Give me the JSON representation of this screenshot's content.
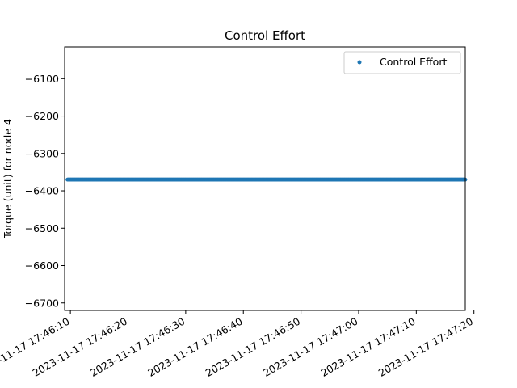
{
  "chart_data": {
    "type": "scatter",
    "title": "Control Effort",
    "xlabel": "",
    "ylabel": "Torque (unit) for node 4",
    "x_range": [
      "2023-11-17 17:46:09",
      "2023-11-17 17:47:18.5"
    ],
    "ylim": [
      -6720,
      -6015
    ],
    "y_ticks": [
      -6700,
      -6600,
      -6500,
      -6400,
      -6300,
      -6200,
      -6100
    ],
    "x_ticks": [
      "2023-11-17 17:46:10",
      "2023-11-17 17:46:20",
      "2023-11-17 17:46:30",
      "2023-11-17 17:46:40",
      "2023-11-17 17:46:50",
      "2023-11-17 17:47:00",
      "2023-11-17 17:47:10",
      "2023-11-17 17:47:20"
    ],
    "series": [
      {
        "name": "Control Effort",
        "color": "#1f77b4",
        "x_start": "2023-11-17 17:46:09.5",
        "x_end": "2023-11-17 17:47:18.5",
        "y_constant": -6370
      }
    ],
    "legend": "top-right",
    "grid": false
  }
}
